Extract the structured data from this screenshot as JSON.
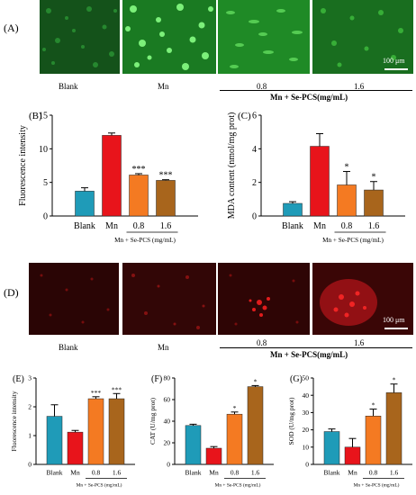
{
  "panels": {
    "A": {
      "letter": "(A)",
      "conditions": [
        "Blank",
        "Mn",
        "0.8",
        "1.6"
      ],
      "group_label": "Mn + Se-PCS(mg/mL)",
      "scale_bar": "100 μm",
      "image_tone": "green fluorescence"
    },
    "D": {
      "letter": "(D)",
      "conditions": [
        "Blank",
        "Mn",
        "0.8",
        "1.6"
      ],
      "group_label": "Mn + Se-PCS(mg/mL)",
      "scale_bar": "100 μm",
      "image_tone": "red fluorescence"
    }
  },
  "colors": {
    "blank": "#1f9bb8",
    "mn": "#e8141b",
    "dose08": "#f47a22",
    "dose16": "#a8651c",
    "green_fluor": "#39c43a",
    "red_fluor": "#c4141a"
  },
  "chart_data": [
    {
      "id": "B",
      "letter": "(B)",
      "type": "bar",
      "categories": [
        "Blank",
        "Mn",
        "0.8",
        "1.6"
      ],
      "values": [
        3.7,
        12.0,
        6.1,
        5.3
      ],
      "errors": [
        0.5,
        0.35,
        0.2,
        0.1
      ],
      "significance": [
        "",
        "",
        "***",
        "***"
      ],
      "ylabel": "Fluorescence intensity",
      "xgroup": "Mn + Se-PCS (mg/mL)",
      "ylim": [
        0,
        15
      ],
      "yticks": [
        "0",
        "5",
        "10",
        "15"
      ]
    },
    {
      "id": "C",
      "letter": "(C)",
      "type": "bar",
      "categories": [
        "Blank",
        "Mn",
        "0.8",
        "1.6"
      ],
      "values": [
        0.75,
        4.15,
        1.85,
        1.55
      ],
      "errors": [
        0.1,
        0.75,
        0.8,
        0.5
      ],
      "significance": [
        "",
        "",
        "*",
        "*"
      ],
      "ylabel": "MDA content (nmol/mg prot)",
      "xgroup": "Mn + Se-PCS (mg/mL)",
      "ylim": [
        0,
        6
      ],
      "yticks": [
        "0",
        "2",
        "4",
        "6"
      ]
    },
    {
      "id": "E",
      "letter": "(E)",
      "type": "bar",
      "categories": [
        "Blank",
        "Mn",
        "0.8",
        "1.6"
      ],
      "values": [
        1.67,
        1.12,
        2.28,
        2.28
      ],
      "errors": [
        0.4,
        0.06,
        0.07,
        0.18
      ],
      "significance": [
        "",
        "",
        "***",
        "***"
      ],
      "ylabel": "Fluorescence intensity",
      "xgroup": "Mn + Se-PCS (mg/mL)",
      "ylim": [
        0,
        3
      ],
      "yticks": [
        "0",
        "1",
        "2",
        "3"
      ]
    },
    {
      "id": "F",
      "letter": "(F)",
      "type": "bar",
      "categories": [
        "Blank",
        "Mn",
        "0.8",
        "1.6"
      ],
      "values": [
        36,
        15,
        46.5,
        72
      ],
      "errors": [
        1.2,
        1.5,
        2.0,
        1.0
      ],
      "significance": [
        "",
        "",
        "*",
        "*"
      ],
      "ylabel": "CAT (U/mg prot)",
      "xgroup": "Mn + Se-PCS (mg/mL)",
      "ylim": [
        0,
        80
      ],
      "yticks": [
        "0",
        "20",
        "40",
        "60",
        "80"
      ]
    },
    {
      "id": "G",
      "letter": "(G)",
      "type": "bar",
      "categories": [
        "Blank",
        "Mn",
        "0.8",
        "1.6"
      ],
      "values": [
        19,
        10,
        28,
        41.5
      ],
      "errors": [
        1.5,
        5,
        4,
        5
      ],
      "significance": [
        "",
        "",
        "*",
        "*"
      ],
      "ylabel": "SOD (U/mg prot)",
      "xgroup": "Mn + Se-PCS (mg/mL)",
      "ylim": [
        0,
        50
      ],
      "yticks": [
        "0",
        "10",
        "20",
        "30",
        "40",
        "50"
      ]
    }
  ]
}
